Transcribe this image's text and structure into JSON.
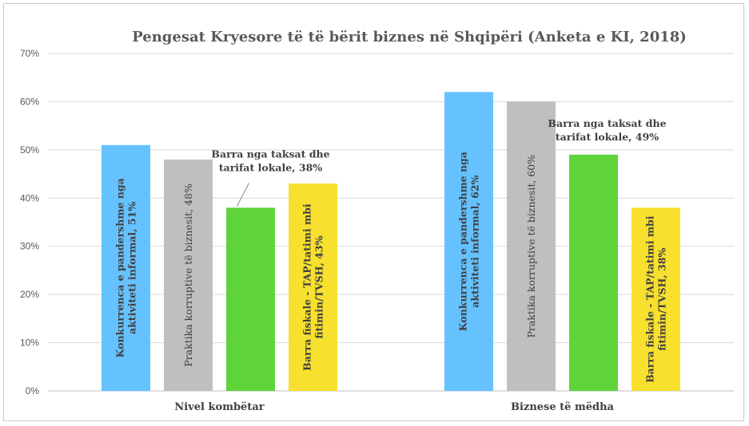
{
  "chart_data": {
    "type": "bar",
    "title": "Pengesat Kryesore të të bërit biznes në Shqipëri (Anketa e KI, 2018)",
    "categories": [
      "Nivel kombëtar",
      "Biznese të mëdha"
    ],
    "ylim": [
      0,
      70
    ],
    "yticks": [
      "0%",
      "10%",
      "20%",
      "30%",
      "40%",
      "50%",
      "60%",
      "70%"
    ],
    "grid": true,
    "series": [
      {
        "color": "#66c2ff",
        "values": [
          51,
          62
        ],
        "labels": [
          [
            "Konkurrenca e pandershme nga",
            "aktiviteti informal, 51%"
          ],
          [
            "Konkurrenca e pandershme nga",
            "aktiviteti informal, 62%"
          ]
        ],
        "label_style": "vertical-bold"
      },
      {
        "color": "#bfbfbf",
        "values": [
          48,
          60
        ],
        "labels": [
          [
            "Praktika korruptive të biznesit, 48%"
          ],
          [
            "Praktika korruptive të biznesit, 60%"
          ]
        ],
        "label_style": "vertical-mixed"
      },
      {
        "color": "#5fd43a",
        "values": [
          38,
          49
        ],
        "labels": [
          [
            "Barra nga taksat dhe",
            "tarifat lokale, 38%"
          ],
          [
            "Barra nga taksat dhe",
            "tarifat lokale, 49%"
          ]
        ],
        "label_style": "callout"
      },
      {
        "color": "#f7e02e",
        "values": [
          43,
          38
        ],
        "labels": [
          [
            "Barra fiskale - TAP/tatimi mbi",
            "fitimin/TVSH, 43%"
          ],
          [
            "Barra fiskale - TAP/tatimi mbi",
            "fitimin/TVSH, 38%"
          ]
        ],
        "label_style": "vertical-bold"
      }
    ]
  }
}
